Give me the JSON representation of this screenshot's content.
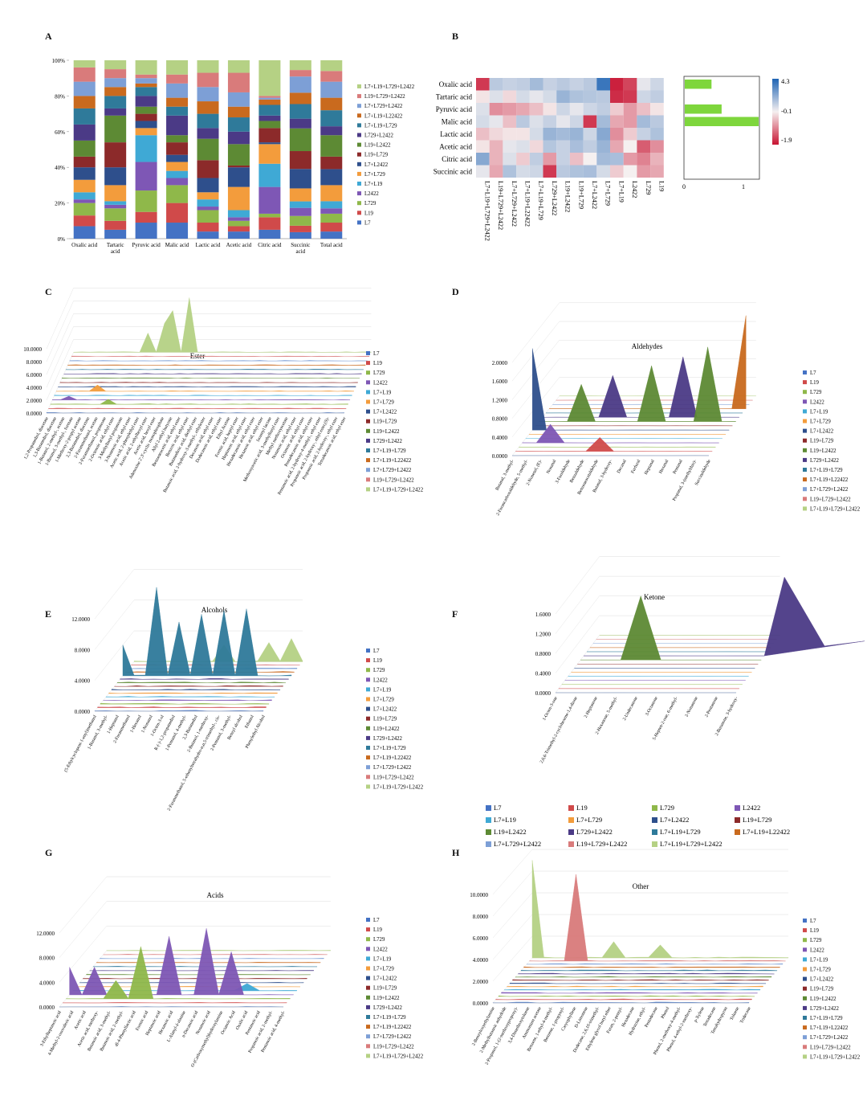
{
  "panel_letters": {
    "a": "A",
    "b": "B",
    "c": "C",
    "d": "D",
    "e": "E",
    "f": "F",
    "g": "G",
    "h": "H"
  },
  "series_names": [
    "L7",
    "L19",
    "L729",
    "L2422",
    "L7+L19",
    "L7+L729",
    "L7+L2422",
    "L19+L729",
    "L19+L2422",
    "L729+L2422",
    "L7+L19+L729",
    "L7+L19+L22422",
    "L7+L729+L2422",
    "L19+L729+L2422",
    "L7+L19+L729+L2422"
  ],
  "colors": [
    "#4472c4",
    "#d04a4a",
    "#8fb84a",
    "#7e57b5",
    "#3fa9d5",
    "#f39c3c",
    "#2e4f8c",
    "#8c2a2a",
    "#5d8a34",
    "#4b3a86",
    "#2f7a9a",
    "#c96a1e",
    "#7d9fd6",
    "#d97b7b",
    "#b5d184"
  ],
  "chart_data": [
    {
      "type": "bar",
      "panel": "A",
      "stacked": true,
      "categories": [
        "Oxalic acid",
        "Tartaric acid",
        "Pyruvic acid",
        "Malic acid",
        "Lactic acid",
        "Acetic acid",
        "Citric acid",
        "Succinic acid",
        "Total acid"
      ],
      "ylim": [
        0,
        100
      ],
      "yticks": [
        "0%",
        "20%",
        "40%",
        "60%",
        "80%",
        "100%"
      ],
      "legend_position": "right",
      "series": [
        {
          "name": "L7",
          "values": [
            7,
            5,
            9,
            9,
            4,
            4,
            5,
            4,
            4
          ]
        },
        {
          "name": "L19",
          "values": [
            6,
            5,
            6,
            11,
            5,
            3,
            7,
            4,
            5
          ]
        },
        {
          "name": "L729",
          "values": [
            7,
            7,
            12,
            10,
            7,
            3,
            2,
            6,
            5
          ]
        },
        {
          "name": "L2422",
          "values": [
            2,
            2,
            16,
            4,
            2,
            2,
            15,
            5,
            3
          ]
        },
        {
          "name": "L7+L19",
          "values": [
            4,
            2,
            15,
            4,
            4,
            4,
            13,
            4,
            4
          ]
        },
        {
          "name": "L7+L729",
          "values": [
            7,
            9,
            4,
            5,
            4,
            13,
            11,
            8,
            9
          ]
        },
        {
          "name": "L7+L2422",
          "values": [
            7,
            10,
            4,
            4,
            8,
            11,
            1,
            12,
            9
          ]
        },
        {
          "name": "L19+L729",
          "values": [
            6,
            14,
            4,
            7,
            10,
            1,
            8,
            11,
            7
          ]
        },
        {
          "name": "L19+L2422",
          "values": [
            9,
            15,
            4,
            4,
            12,
            12,
            4,
            14,
            12
          ]
        },
        {
          "name": "L729+L2422",
          "values": [
            9,
            4,
            6,
            11,
            6,
            7,
            3,
            6,
            5
          ]
        },
        {
          "name": "L7+L19+L729",
          "values": [
            9,
            7,
            5,
            5,
            8,
            8,
            6,
            9,
            9
          ]
        },
        {
          "name": "L7+L19+L22422",
          "values": [
            7,
            5,
            2,
            5,
            7,
            6,
            3,
            7,
            7
          ]
        },
        {
          "name": "L7+L729+L2422",
          "values": [
            8,
            5,
            3,
            8,
            8,
            8,
            1,
            10,
            9
          ]
        },
        {
          "name": "L19+L729+L2422",
          "values": [
            8,
            5,
            2,
            5,
            8,
            11,
            1,
            4,
            6
          ]
        },
        {
          "name": "L7+L19+L729+L2422",
          "values": [
            4,
            5,
            8,
            8,
            7,
            7,
            20,
            6,
            6
          ]
        }
      ]
    },
    {
      "type": "heatmap",
      "panel": "B",
      "rows": [
        "Oxalic acid",
        "Tartaric acid",
        "Pyruvic acid",
        "Malic acid",
        "Lactic acid",
        "Acetic acid",
        "Citric acid",
        "Succinic acid"
      ],
      "columns": [
        "L7+L19+L729+L2422",
        "L19+L729+L2422",
        "L7+L729+L2422",
        "L7+L19+L22422",
        "L7+L19+L729",
        "L729+L2422",
        "L19+L2422",
        "L19+L729",
        "L7+L2422",
        "L7+L729",
        "L7+L19",
        "L2422",
        "L729",
        "L19"
      ],
      "values": [
        [
          -1.6,
          0.6,
          0.4,
          0.5,
          1.0,
          0.4,
          0.6,
          0.4,
          0.6,
          3.5,
          -1.8,
          -1.5,
          0.0,
          0.3
        ],
        [
          -0.2,
          0.1,
          -0.3,
          0.2,
          0.0,
          0.2,
          1.2,
          0.8,
          0.7,
          0.6,
          -1.7,
          -1.6,
          0.3,
          0.5
        ],
        [
          0.1,
          -0.9,
          -0.8,
          -0.7,
          -0.5,
          -0.2,
          0.3,
          0.0,
          0.3,
          0.5,
          -0.4,
          -0.8,
          -0.5,
          -0.2
        ],
        [
          0.2,
          0.0,
          -0.5,
          0.6,
          0.1,
          0.4,
          0.0,
          0.3,
          -1.6,
          1.0,
          -0.7,
          -0.8,
          1.0,
          0.6
        ],
        [
          -0.5,
          -0.3,
          -0.2,
          -0.2,
          0.2,
          1.2,
          1.0,
          1.2,
          0.3,
          1.6,
          -0.9,
          -0.4,
          0.4,
          0.8
        ],
        [
          -0.2,
          -0.6,
          0.0,
          0.1,
          -0.3,
          0.7,
          0.4,
          0.9,
          0.5,
          1.2,
          -0.7,
          -0.1,
          -1.3,
          -0.9
        ],
        [
          1.6,
          -0.6,
          0.1,
          -0.4,
          0.5,
          -0.8,
          0.4,
          -0.5,
          -0.1,
          1.0,
          0.9,
          -0.8,
          -1.0,
          -0.6
        ],
        [
          0.0,
          -0.7,
          0.8,
          0.2,
          0.3,
          -1.6,
          0.6,
          0.8,
          0.9,
          0.2,
          -0.4,
          -0.1,
          -0.8,
          -0.7
        ]
      ],
      "scale_max": 4.3,
      "scale_mid": -0.1,
      "scale_min": -1.9,
      "scale_labels": [
        "4.3",
        "-0.1",
        "-1.9"
      ],
      "side_bars": [
        0.45,
        0,
        0.62,
        1.3,
        0,
        0,
        0,
        0
      ],
      "side_ticks": [
        "0",
        "1"
      ]
    },
    {
      "type": "area",
      "panel": "C",
      "title": "Ester",
      "yticks": [
        "0.0000",
        "2.0000",
        "4.0000",
        "6.0000",
        "8.0000",
        "10.0000"
      ],
      "ymax": 10,
      "categories": [
        "1,2-Propanediol, diacetate",
        "1,3-Butanediol, diacetate",
        "1-Butanol, 2-methyl-, acetate",
        "1-Butanol, 3-methyl-, formate",
        "1-Methoxy-2-propyl acetate",
        "2,3-Butanediol, diacetate",
        "2-Furanmethanol, acetate",
        "2-Furanmethanol, propanoate",
        "2-Octenoic acid, ethyl ester",
        "3-Methylbutyl propanoate",
        "3-Nonenoic acid, ethyl ester",
        "Acetic acid, 2-phenylethyl ester",
        "Acetic acid, 2-ethylhexyl ester",
        "Acetic acid, hexyl ester",
        "Adenosine 2',3'-cyclic monophosphate",
        "Allyl 2-ethyl butyrate",
        "Benzeneacetic acid, ethyl ester",
        "Benzoic acid, ethyl ester",
        "Butanedioic acid, diethyl ester",
        "Butanoic acid, 2-hydroxy-3-methyl-, ethylester",
        "Decanoic acid, ethyl ester",
        "Dodecanoic acid, ethyl ester",
        "Ethyl Acetate",
        "Formic acid, heptyl ester",
        "Heptanoic acid, ethyl ester",
        "Hexadecanoic acid, ethyl ester",
        "Hexanoic acid, ethyl ester",
        "Isoamyl lactate",
        "Methoxyacetic acid, 3-methylbutyl ester",
        "Methyl methoxyacetate",
        "Nonanoic acid, ethyl ester",
        "Octanoic acid, ethyl ester",
        "Pentadecanoic acid, ethyl ester",
        "Pentanoic acid, 2-hydroxy-4-methyl-, ethyl ester",
        "Propanoic acid, 2-hydroxy-, ethyl ester,(S)-",
        "Propanoic acid, 2-hydroxy-, ethyl ester",
        "Tetradecanoic acid, ethyl ester"
      ]
    },
    {
      "type": "area",
      "panel": "D",
      "title": "Aldehydes",
      "yticks": [
        "0.0000",
        "0.4000",
        "0.8000",
        "1.2000",
        "1.6000",
        "2.0000"
      ],
      "ymax": 2,
      "categories": [
        "Butanal, 3-methyl-",
        "2-Furancarboxaldehyde, 5-methyl-",
        "2-Nonenal, (E)-",
        "Nonanal",
        "3-Furaldehyde",
        "Benzaldehyde",
        "Benzeneacetaldehyde",
        "Butanal, 3-hydroxy-",
        "Decanal",
        "Furfural",
        "Heptanal",
        "Hexanal",
        "Pentanal",
        "Propanal, 3-(methylthio)-",
        "Succinaldehyde"
      ]
    },
    {
      "type": "area",
      "panel": "E",
      "title": "Alcohols",
      "yticks": [
        "0.0000",
        "4.0000",
        "8.0000",
        "12.0000"
      ],
      "ymax": 12,
      "categories": [
        "(5-Ethylcyclopent-1-enyl)methanol",
        "1-Butanol, 3-methyl-",
        "1-Heptanol",
        "2-Furanmethanol",
        "1-Hexanol",
        "1-Nonanol",
        "1-Octen-3-ol",
        "R-(-)-1,2-propanediol",
        "1-Pentanol, 4-methyl-",
        "2,3-Butanediol",
        "2-Butanol, 1-methoxy-",
        "2-Furanmethanol, 5-ethenyltetrahydro-α,α,5-trimethyl-, cis-",
        "2-Pentanol, 3-methyl-",
        "Benzyl alcohol",
        "Ethanol",
        "Phenylethyl Alcohol"
      ]
    },
    {
      "type": "area",
      "panel": "F",
      "title": "Ketone",
      "yticks": [
        "0.0000",
        "0.4000",
        "0.8000",
        "1.2000",
        "1.6000"
      ],
      "ymax": 1.6,
      "categories": [
        "1-Octen-3-one",
        "2,6,6-Trimethyl-2-cyclohexene-1,4-dione",
        "2-Heptanone",
        "2-Hexanone, 5-methyl-",
        "2-Undecanone",
        "3-Octanone",
        "5-Hepten-2-one, 6-methyl-",
        "2-Nonanone",
        "2-Pentanone",
        "2-Butanone, 3-hydroxy-"
      ]
    },
    {
      "type": "area",
      "panel": "G",
      "title": "Acids",
      "yticks": [
        "0.0000",
        "4.0000",
        "8.0000",
        "12.0000"
      ],
      "ymax": 12,
      "categories": [
        "3-Ethylheptanoic acid",
        "4-Methyl-2-oxovaleric acid",
        "Acetic acid",
        "Acetic acid, methoxy-",
        "Butanoic acid, 3-methyl-",
        "Butanoic acid, 2-methyl-",
        "dl-4-Phenyllactic acid",
        "Formic acid",
        "Heptanoic acid",
        "Hexanoic acid",
        "L-Alanyl-á-alanine",
        "n-Decanoic acid",
        "Nonanoic acid",
        "O-(Carboxymethyl)hydroxylamine",
        "Octanoic Acid",
        "Oxalic acid",
        "Pentanoic acid",
        "Propanoic acid, 2-methyl-",
        "Pentanoic acid, 4-methyl-"
      ]
    },
    {
      "type": "area",
      "panel": "H",
      "title": "Other",
      "yticks": [
        "0.0000",
        "2.0000",
        "4.0000",
        "6.0000",
        "8.0000",
        "10.0000"
      ],
      "ymax": 10,
      "categories": [
        "2-Benzyloxyethylamine",
        "2-Methylbutanoic anhydride",
        "2-Propanol, 1-(2-methoxypropoxy)-",
        "3,4-Dimethoxytoluene",
        "Ammonium acetate",
        "Benzene, 1-ethyl-4-methyl-",
        "Benzene, 1-propynyl-",
        "Caryophyllene",
        "D-Limonene",
        "Dodecane, 2,6,10-trimethyl-",
        "Ethylene glycol butyl ether",
        "Furan, 2-pentyl-",
        "Hexadecane",
        "Hydrazine, ethyl-",
        "Pentadecane",
        "Phenol",
        "Phenol, 2-methoxy-4-methyl-",
        "Phenol, 4-ethyl-2-methoxy-",
        "p-Xylene",
        "Tetradecane",
        "Tetrahydropyran",
        "Toluene",
        "Tridecane"
      ]
    }
  ]
}
